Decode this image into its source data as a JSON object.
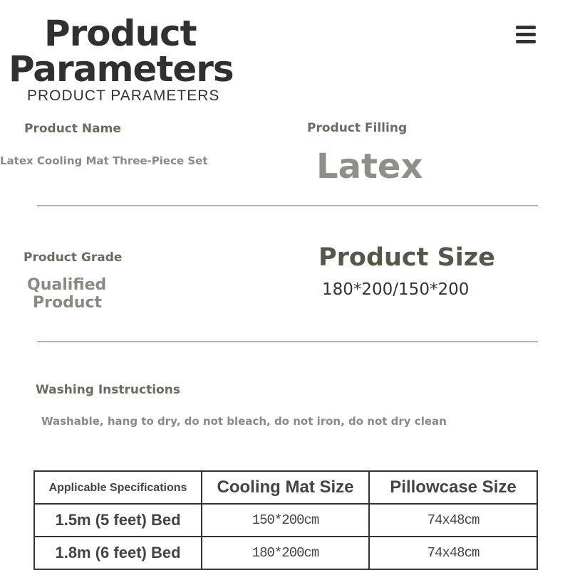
{
  "header": {
    "title_line1": "Product",
    "title_line2": "Parameters",
    "subtitle": "PRODUCT PARAMETERS",
    "menu_icon": "hamburger-menu-icon"
  },
  "fields": {
    "name_label": "Product Name",
    "name_value": "Latex Cooling Mat Three-Piece Set",
    "filling_label": "Product Filling",
    "filling_value": "Latex",
    "grade_label": "Product Grade",
    "grade_value_line1": "Qualified",
    "grade_value_line2": "Product",
    "size_label": "Product Size",
    "size_value": "180*200/150*200",
    "washing_label": "Washing Instructions",
    "washing_value": "Washable, hang to dry, do not bleach, do not iron, do not dry clean"
  },
  "table": {
    "headers": [
      "Applicable Specifications",
      "Cooling Mat Size",
      "Pillowcase Size"
    ],
    "rows": [
      [
        "1.5m (5 feet) Bed",
        "150*200cm",
        "74x48cm"
      ],
      [
        "1.8m (6 feet) Bed",
        "180*200cm",
        "74x48cm"
      ]
    ]
  }
}
